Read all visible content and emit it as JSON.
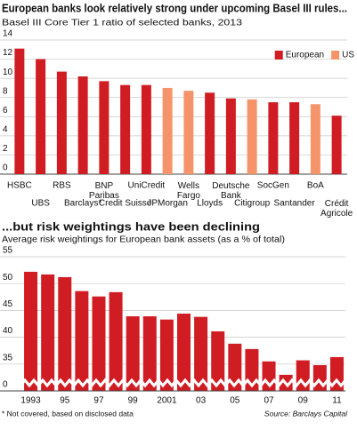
{
  "chart_data": [
    {
      "type": "bar",
      "title": "European banks look relatively strong under upcoming Basel III rules...",
      "subtitle": "Basel III Core Tier 1 ratio of selected banks, 2013",
      "categories": [
        "HSBC",
        "UBS",
        "RBS",
        "Barclays*",
        "BNP\nParibas",
        "Credit Suisse",
        "UniCredit",
        "JPMorgan",
        "Wells\nFargo",
        "Lloyds",
        "Deutsche\nBank",
        "Citigroup",
        "SocGen",
        "Santander",
        "BoA",
        "Crédit\nAgricole"
      ],
      "series": [
        {
          "name": "European",
          "color": "#d01c23",
          "values": [
            13.1,
            12.0,
            10.7,
            10.2,
            9.7,
            9.3,
            9.3,
            null,
            null,
            8.5,
            7.9,
            null,
            7.5,
            7.5,
            null,
            6.1
          ]
        },
        {
          "name": "US",
          "color": "#f5946a",
          "values": [
            null,
            null,
            null,
            null,
            null,
            null,
            null,
            9.0,
            8.7,
            null,
            null,
            7.8,
            null,
            null,
            7.3,
            null
          ]
        }
      ],
      "ylim": [
        0,
        14
      ],
      "yticks": [
        0,
        2,
        4,
        6,
        8,
        10,
        12,
        14
      ],
      "grid": true,
      "legend": "top-right"
    },
    {
      "type": "bar",
      "title": "...but risk weightings have been declining",
      "subtitle": "Average risk weightings for European bank assets (as a % of total)",
      "categories": [
        "1993",
        null,
        "95",
        null,
        "97",
        null,
        "99",
        null,
        "2001",
        null,
        "03",
        null,
        "05",
        null,
        "07",
        null,
        "09",
        null,
        "11"
      ],
      "values": [
        52.2,
        51.7,
        51.2,
        48.6,
        47.6,
        48.4,
        43.9,
        43.9,
        43.3,
        44.4,
        43.8,
        41.1,
        38.8,
        37.8,
        35.5,
        33.0,
        35.7,
        34.8,
        36.3
      ],
      "color": "#d01c23",
      "ylim": [
        0,
        55
      ],
      "axis_break": [
        0,
        30
      ],
      "yticks": [
        0,
        35,
        40,
        45,
        50,
        55
      ],
      "grid": true
    }
  ],
  "footnote": "* Not covered, based on disclosed data",
  "source": "Source: Barclays Capital"
}
